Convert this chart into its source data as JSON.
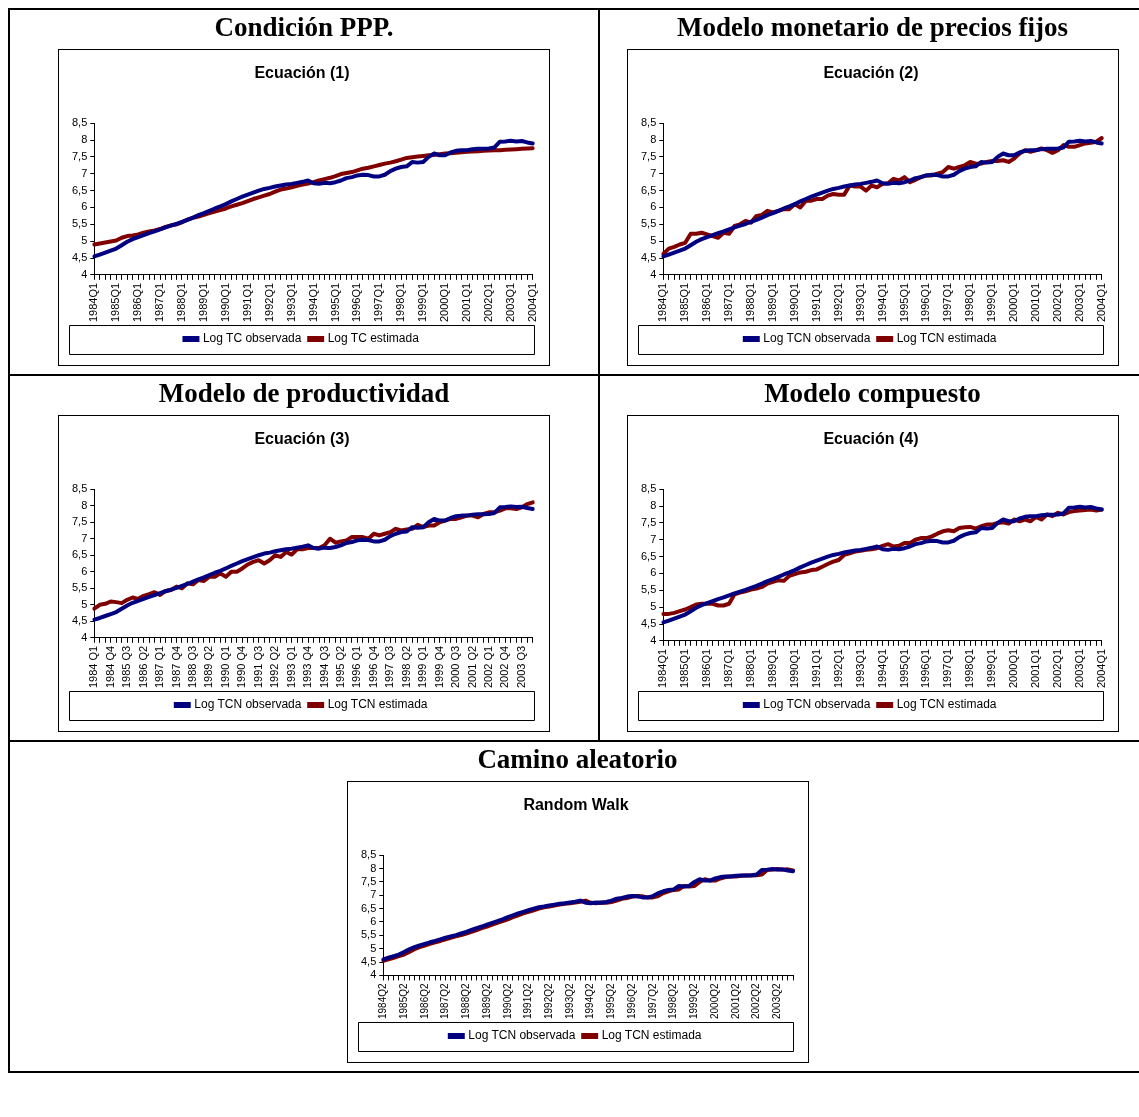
{
  "chart_data": [
    {
      "type": "line",
      "title": "Condición PPP.",
      "subtitle": "Ecuación (1)",
      "categories": [
        "1984Q1",
        null,
        null,
        null,
        "1985Q1",
        null,
        null,
        null,
        "1986Q1",
        null,
        null,
        null,
        "1987Q1",
        null,
        null,
        null,
        "1988Q1",
        null,
        null,
        null,
        "1989Q1",
        null,
        null,
        null,
        "1990Q1",
        null,
        null,
        null,
        "1991Q1",
        null,
        null,
        null,
        "1992Q1",
        null,
        null,
        null,
        "1993Q1",
        null,
        null,
        null,
        "1994Q1",
        null,
        null,
        null,
        "1995Q1",
        null,
        null,
        null,
        "1996Q1",
        null,
        null,
        null,
        "1997Q1",
        null,
        null,
        null,
        "1998Q1",
        null,
        null,
        null,
        "1999Q1",
        null,
        null,
        null,
        "2000Q1",
        null,
        null,
        null,
        "2001Q1",
        null,
        null,
        null,
        "2002Q1",
        null,
        null,
        null,
        "2003Q1",
        null,
        null,
        null,
        "2004Q1"
      ],
      "series": [
        {
          "name": "Log TC observada",
          "color": "#000080",
          "values": [
            4.55,
            4.6,
            4.66,
            4.72,
            4.78,
            4.88,
            4.98,
            5.06,
            5.12,
            5.18,
            5.24,
            5.29,
            5.35,
            5.41,
            5.46,
            5.51,
            5.57,
            5.63,
            5.7,
            5.77,
            5.83,
            5.9,
            5.97,
            6.03,
            6.1,
            6.18,
            6.25,
            6.32,
            6.38,
            6.44,
            6.5,
            6.55,
            6.58,
            6.62,
            6.65,
            6.68,
            6.7,
            6.73,
            6.76,
            6.8,
            6.72,
            6.7,
            6.73,
            6.72,
            6.75,
            6.8,
            6.87,
            6.9,
            6.95,
            6.97,
            6.96,
            6.92,
            6.92,
            6.97,
            7.08,
            7.15,
            7.2,
            7.22,
            7.35,
            7.33,
            7.35,
            7.5,
            7.6,
            7.55,
            7.55,
            7.63,
            7.68,
            7.7,
            7.7,
            7.73,
            7.74,
            7.74,
            7.75,
            7.78,
            7.95,
            7.96,
            7.98,
            7.96,
            7.97,
            7.93,
            7.9
          ]
        },
        {
          "name": "Log TC estimada",
          "color": "#800000",
          "values": [
            4.9,
            4.93,
            4.96,
            4.99,
            5.02,
            5.1,
            5.15,
            5.17,
            5.2,
            5.25,
            5.29,
            5.32,
            5.36,
            5.42,
            5.47,
            5.5,
            5.56,
            5.64,
            5.69,
            5.73,
            5.78,
            5.83,
            5.88,
            5.92,
            5.97,
            6.03,
            6.08,
            6.13,
            6.19,
            6.25,
            6.3,
            6.35,
            6.4,
            6.47,
            6.53,
            6.56,
            6.6,
            6.64,
            6.68,
            6.71,
            6.75,
            6.8,
            6.84,
            6.88,
            6.93,
            6.99,
            7.02,
            7.05,
            7.1,
            7.15,
            7.18,
            7.22,
            7.26,
            7.3,
            7.33,
            7.37,
            7.42,
            7.47,
            7.49,
            7.51,
            7.53,
            7.55,
            7.56,
            7.58,
            7.6,
            7.61,
            7.62,
            7.64,
            7.65,
            7.66,
            7.67,
            7.68,
            7.69,
            7.7,
            7.7,
            7.71,
            7.72,
            7.73,
            7.74,
            7.75,
            7.76
          ]
        }
      ],
      "ylim": [
        4,
        8.5
      ],
      "yticks": [
        4,
        {
          "value": 4.5,
          "label": "4,5"
        },
        5,
        {
          "value": 5.5,
          "label": "5,5"
        },
        6,
        {
          "value": 6.5,
          "label": "6,5"
        },
        7,
        {
          "value": 7.5,
          "label": "7,5"
        },
        8,
        {
          "value": 8.5,
          "label": "8,5"
        }
      ],
      "legend": "bottom"
    },
    {
      "type": "line",
      "title": "Modelo monetario de precios fijos",
      "subtitle": "Ecuación (2)",
      "categories": [
        "1984Q1",
        null,
        null,
        null,
        "1985Q1",
        null,
        null,
        null,
        "1986Q1",
        null,
        null,
        null,
        "1987Q1",
        null,
        null,
        null,
        "1988Q1",
        null,
        null,
        null,
        "1989Q1",
        null,
        null,
        null,
        "1990Q1",
        null,
        null,
        null,
        "1991Q1",
        null,
        null,
        null,
        "1992Q1",
        null,
        null,
        null,
        "1993Q1",
        null,
        null,
        null,
        "1994Q1",
        null,
        null,
        null,
        "1995Q1",
        null,
        null,
        null,
        "1996Q1",
        null,
        null,
        null,
        "1997Q1",
        null,
        null,
        null,
        "1998Q1",
        null,
        null,
        null,
        "1999Q1",
        null,
        null,
        null,
        "2000Q1",
        null,
        null,
        null,
        "2001Q1",
        null,
        null,
        null,
        "2002Q1",
        null,
        null,
        null,
        "2003Q1",
        null,
        null,
        null,
        "2004Q1"
      ],
      "series": [
        {
          "name": "Log TCN observada",
          "color": "#000080",
          "values": [
            4.55,
            4.6,
            4.66,
            4.72,
            4.78,
            4.88,
            4.98,
            5.06,
            5.12,
            5.18,
            5.24,
            5.29,
            5.35,
            5.41,
            5.46,
            5.51,
            5.57,
            5.63,
            5.7,
            5.77,
            5.83,
            5.9,
            5.97,
            6.03,
            6.1,
            6.18,
            6.25,
            6.32,
            6.38,
            6.44,
            6.5,
            6.55,
            6.58,
            6.62,
            6.65,
            6.68,
            6.7,
            6.73,
            6.76,
            6.8,
            6.72,
            6.7,
            6.73,
            6.72,
            6.75,
            6.8,
            6.87,
            6.9,
            6.95,
            6.97,
            6.96,
            6.92,
            6.92,
            6.97,
            7.08,
            7.15,
            7.2,
            7.22,
            7.35,
            7.33,
            7.35,
            7.5,
            7.6,
            7.55,
            7.55,
            7.63,
            7.68,
            7.7,
            7.7,
            7.73,
            7.74,
            7.74,
            7.75,
            7.78,
            7.95,
            7.96,
            7.98,
            7.96,
            7.97,
            7.93,
            7.9
          ]
        },
        {
          "name": "Log TCN estimada",
          "color": "#800000",
          "values": [
            4.62,
            4.78,
            4.83,
            4.9,
            4.95,
            5.22,
            5.22,
            5.25,
            5.2,
            5.15,
            5.1,
            5.25,
            5.22,
            5.45,
            5.5,
            5.6,
            5.55,
            5.75,
            5.78,
            5.9,
            5.85,
            5.9,
            5.95,
            5.95,
            6.1,
            6.0,
            6.2,
            6.2,
            6.25,
            6.25,
            6.35,
            6.4,
            6.38,
            6.38,
            6.65,
            6.62,
            6.62,
            6.5,
            6.65,
            6.6,
            6.7,
            6.72,
            6.85,
            6.8,
            6.9,
            6.75,
            6.82,
            6.9,
            6.95,
            6.95,
            7.0,
            7.05,
            7.2,
            7.15,
            7.2,
            7.25,
            7.35,
            7.3,
            7.3,
            7.35,
            7.38,
            7.38,
            7.4,
            7.35,
            7.45,
            7.6,
            7.7,
            7.65,
            7.7,
            7.75,
            7.7,
            7.62,
            7.7,
            7.85,
            7.8,
            7.8,
            7.85,
            7.9,
            7.92,
            7.95,
            8.06
          ]
        }
      ],
      "ylim": [
        4,
        8.5
      ],
      "yticks": [
        4,
        {
          "value": 4.5,
          "label": "4,5"
        },
        5,
        {
          "value": 5.5,
          "label": "5,5"
        },
        6,
        {
          "value": 6.5,
          "label": "6,5"
        },
        7,
        {
          "value": 7.5,
          "label": "7,5"
        },
        8,
        {
          "value": 8.5,
          "label": "8,5"
        }
      ],
      "legend": "bottom"
    },
    {
      "type": "line",
      "title": "Modelo de productividad",
      "subtitle": "Ecuación (3)",
      "categories": [
        "1984 Q1",
        null,
        null,
        "1984 Q4",
        null,
        null,
        "1985 Q3",
        null,
        null,
        "1986 Q2",
        null,
        null,
        "1987 Q1",
        null,
        null,
        "1987 Q4",
        null,
        null,
        "1988 Q3",
        null,
        null,
        "1989 Q2",
        null,
        null,
        "1990 Q1",
        null,
        null,
        "1990 Q4",
        null,
        null,
        "1991 Q3",
        null,
        null,
        "1992 Q2",
        null,
        null,
        "1993 Q1",
        null,
        null,
        "1993 Q4",
        null,
        null,
        "1994 Q3",
        null,
        null,
        "1995 Q2",
        null,
        null,
        "1996 Q1",
        null,
        null,
        "1996 Q4",
        null,
        null,
        "1997 Q3",
        null,
        null,
        "1998 Q2",
        null,
        null,
        "1999 Q1",
        null,
        null,
        "1999 Q4",
        null,
        null,
        "2000 Q3",
        null,
        null,
        "2001 Q2",
        null,
        null,
        "2002 Q1",
        null,
        null,
        "2002 Q4",
        null,
        null,
        "2003 Q3",
        null,
        null
      ],
      "series": [
        {
          "name": "Log TCN observada",
          "color": "#000080",
          "values": [
            4.55,
            4.6,
            4.66,
            4.72,
            4.78,
            4.88,
            4.98,
            5.06,
            5.12,
            5.18,
            5.24,
            5.29,
            5.35,
            5.41,
            5.46,
            5.51,
            5.57,
            5.63,
            5.7,
            5.77,
            5.83,
            5.9,
            5.97,
            6.03,
            6.1,
            6.18,
            6.25,
            6.32,
            6.38,
            6.44,
            6.5,
            6.55,
            6.58,
            6.62,
            6.65,
            6.68,
            6.7,
            6.73,
            6.76,
            6.8,
            6.72,
            6.7,
            6.73,
            6.72,
            6.75,
            6.8,
            6.87,
            6.9,
            6.95,
            6.97,
            6.96,
            6.92,
            6.92,
            6.97,
            7.08,
            7.15,
            7.2,
            7.22,
            7.35,
            7.33,
            7.35,
            7.5,
            7.6,
            7.55,
            7.55,
            7.63,
            7.68,
            7.7,
            7.7,
            7.73,
            7.74,
            7.74,
            7.75,
            7.78,
            7.95,
            7.96,
            7.98,
            7.96,
            7.97,
            7.93,
            7.9
          ]
        },
        {
          "name": "Log TCN estimada",
          "color": "#800000",
          "values": [
            4.88,
            5.0,
            5.03,
            5.1,
            5.08,
            5.05,
            5.15,
            5.22,
            5.18,
            5.27,
            5.32,
            5.38,
            5.3,
            5.42,
            5.45,
            5.55,
            5.5,
            5.65,
            5.62,
            5.75,
            5.72,
            5.85,
            5.85,
            5.95,
            5.85,
            6.0,
            6.0,
            6.1,
            6.22,
            6.3,
            6.35,
            6.25,
            6.35,
            6.5,
            6.45,
            6.6,
            6.52,
            6.68,
            6.68,
            6.72,
            6.72,
            6.72,
            6.8,
            7.0,
            6.88,
            6.92,
            6.95,
            7.05,
            7.05,
            7.05,
            7.0,
            7.15,
            7.1,
            7.15,
            7.2,
            7.3,
            7.25,
            7.28,
            7.3,
            7.42,
            7.35,
            7.4,
            7.4,
            7.5,
            7.55,
            7.6,
            7.6,
            7.65,
            7.7,
            7.7,
            7.65,
            7.75,
            7.8,
            7.8,
            7.85,
            7.92,
            7.92,
            7.9,
            7.95,
            8.05,
            8.1
          ]
        }
      ],
      "ylim": [
        4,
        8.5
      ],
      "yticks": [
        4,
        {
          "value": 4.5,
          "label": "4,5"
        },
        5,
        {
          "value": 5.5,
          "label": "5,5"
        },
        6,
        {
          "value": 6.5,
          "label": "6,5"
        },
        7,
        {
          "value": 7.5,
          "label": "7,5"
        },
        8,
        {
          "value": 8.5,
          "label": "8,5"
        }
      ],
      "legend": "bottom"
    },
    {
      "type": "line",
      "title": "Modelo compuesto",
      "subtitle": "Ecuación (4)",
      "categories": [
        "1984Q1",
        null,
        null,
        null,
        "1985Q1",
        null,
        null,
        null,
        "1986Q1",
        null,
        null,
        null,
        "1987Q1",
        null,
        null,
        null,
        "1988Q1",
        null,
        null,
        null,
        "1989Q1",
        null,
        null,
        null,
        "1990Q1",
        null,
        null,
        null,
        "1991Q1",
        null,
        null,
        null,
        "1992Q1",
        null,
        null,
        null,
        "1993Q1",
        null,
        null,
        null,
        "1994Q1",
        null,
        null,
        null,
        "1995Q1",
        null,
        null,
        null,
        "1996Q1",
        null,
        null,
        null,
        "1997Q1",
        null,
        null,
        null,
        "1998Q1",
        null,
        null,
        null,
        "1999Q1",
        null,
        null,
        null,
        "2000Q1",
        null,
        null,
        null,
        "2001Q1",
        null,
        null,
        null,
        "2002Q1",
        null,
        null,
        null,
        "2003Q1",
        null,
        null,
        null,
        "2004Q1"
      ],
      "series": [
        {
          "name": "Log TCN observada",
          "color": "#000080",
          "values": [
            4.55,
            4.6,
            4.66,
            4.72,
            4.78,
            4.88,
            4.98,
            5.06,
            5.12,
            5.18,
            5.24,
            5.29,
            5.35,
            5.41,
            5.46,
            5.51,
            5.57,
            5.63,
            5.7,
            5.77,
            5.83,
            5.9,
            5.97,
            6.03,
            6.1,
            6.18,
            6.25,
            6.32,
            6.38,
            6.44,
            6.5,
            6.55,
            6.58,
            6.62,
            6.65,
            6.68,
            6.7,
            6.73,
            6.76,
            6.8,
            6.72,
            6.7,
            6.73,
            6.72,
            6.75,
            6.8,
            6.87,
            6.9,
            6.95,
            6.97,
            6.96,
            6.92,
            6.92,
            6.97,
            7.08,
            7.15,
            7.2,
            7.22,
            7.35,
            7.33,
            7.35,
            7.5,
            7.6,
            7.55,
            7.55,
            7.63,
            7.68,
            7.7,
            7.7,
            7.73,
            7.74,
            7.74,
            7.75,
            7.78,
            7.95,
            7.96,
            7.98,
            7.96,
            7.97,
            7.93,
            7.9
          ]
        },
        {
          "name": "Log TCN estimada",
          "color": "#800000",
          "values": [
            4.8,
            4.8,
            4.83,
            4.88,
            4.93,
            5.0,
            5.08,
            5.1,
            5.1,
            5.1,
            5.05,
            5.05,
            5.1,
            5.38,
            5.43,
            5.47,
            5.52,
            5.55,
            5.6,
            5.7,
            5.75,
            5.8,
            5.78,
            5.93,
            5.98,
            6.03,
            6.05,
            6.1,
            6.12,
            6.2,
            6.28,
            6.35,
            6.4,
            6.55,
            6.6,
            6.65,
            6.67,
            6.7,
            6.72,
            6.75,
            6.82,
            6.87,
            6.8,
            6.82,
            6.9,
            6.9,
            7.0,
            7.05,
            7.05,
            7.1,
            7.18,
            7.25,
            7.28,
            7.25,
            7.35,
            7.37,
            7.38,
            7.33,
            7.4,
            7.45,
            7.45,
            7.5,
            7.52,
            7.48,
            7.6,
            7.55,
            7.6,
            7.55,
            7.68,
            7.6,
            7.75,
            7.7,
            7.8,
            7.75,
            7.82,
            7.85,
            7.87,
            7.88,
            7.9,
            7.87,
            7.9
          ]
        }
      ],
      "ylim": [
        4,
        8.5
      ],
      "yticks": [
        4,
        {
          "value": 4.5,
          "label": "4,5"
        },
        5,
        {
          "value": 5.5,
          "label": "5,5"
        },
        6,
        {
          "value": 6.5,
          "label": "6,5"
        },
        7,
        {
          "value": 7.5,
          "label": "7,5"
        },
        8,
        {
          "value": 8.5,
          "label": "8,5"
        }
      ],
      "legend": "bottom"
    },
    {
      "type": "line",
      "title": "Camino aleatorio",
      "subtitle": "Random Walk",
      "categories": [
        "1984Q2",
        null,
        null,
        null,
        "1985Q2",
        null,
        null,
        null,
        "1986Q2",
        null,
        null,
        null,
        "1987Q2",
        null,
        null,
        null,
        "1988Q2",
        null,
        null,
        null,
        "1989Q2",
        null,
        null,
        null,
        "1990Q2",
        null,
        null,
        null,
        "1991Q2",
        null,
        null,
        null,
        "1992Q2",
        null,
        null,
        null,
        "1993Q2",
        null,
        null,
        null,
        "1994Q2",
        null,
        null,
        null,
        "1995Q2",
        null,
        null,
        null,
        "1996Q2",
        null,
        null,
        null,
        "1997Q2",
        null,
        null,
        null,
        "1998Q2",
        null,
        null,
        null,
        "1999Q2",
        null,
        null,
        null,
        "2000Q2",
        null,
        null,
        null,
        "2001Q2",
        null,
        null,
        null,
        "2002Q2",
        null,
        null,
        null,
        "2003Q2",
        null,
        null,
        null
      ],
      "series": [
        {
          "name": "Log TCN observada",
          "color": "#000080",
          "values": [
            4.6,
            4.66,
            4.72,
            4.78,
            4.88,
            4.98,
            5.06,
            5.12,
            5.18,
            5.24,
            5.29,
            5.35,
            5.41,
            5.46,
            5.51,
            5.57,
            5.63,
            5.7,
            5.77,
            5.83,
            5.9,
            5.97,
            6.03,
            6.1,
            6.18,
            6.25,
            6.32,
            6.38,
            6.44,
            6.5,
            6.55,
            6.58,
            6.62,
            6.65,
            6.68,
            6.7,
            6.73,
            6.76,
            6.8,
            6.72,
            6.7,
            6.73,
            6.72,
            6.75,
            6.8,
            6.87,
            6.9,
            6.95,
            6.97,
            6.96,
            6.92,
            6.92,
            6.97,
            7.08,
            7.15,
            7.2,
            7.22,
            7.35,
            7.33,
            7.35,
            7.5,
            7.6,
            7.55,
            7.55,
            7.63,
            7.68,
            7.7,
            7.7,
            7.73,
            7.74,
            7.74,
            7.75,
            7.78,
            7.95,
            7.96,
            7.98,
            7.96,
            7.97,
            7.93,
            7.9
          ]
        },
        {
          "name": "Log TCN estimada",
          "color": "#800000",
          "values": [
            4.55,
            4.6,
            4.66,
            4.72,
            4.78,
            4.88,
            4.98,
            5.06,
            5.12,
            5.18,
            5.24,
            5.29,
            5.35,
            5.41,
            5.46,
            5.51,
            5.57,
            5.63,
            5.7,
            5.77,
            5.83,
            5.9,
            5.97,
            6.03,
            6.1,
            6.18,
            6.25,
            6.32,
            6.38,
            6.44,
            6.5,
            6.55,
            6.58,
            6.62,
            6.65,
            6.68,
            6.7,
            6.73,
            6.76,
            6.8,
            6.72,
            6.7,
            6.73,
            6.72,
            6.75,
            6.8,
            6.87,
            6.9,
            6.95,
            6.97,
            6.96,
            6.92,
            6.92,
            6.97,
            7.08,
            7.15,
            7.2,
            7.22,
            7.35,
            7.33,
            7.35,
            7.5,
            7.6,
            7.55,
            7.55,
            7.63,
            7.68,
            7.7,
            7.7,
            7.73,
            7.74,
            7.74,
            7.75,
            7.78,
            7.95,
            7.96,
            7.98,
            7.96,
            7.97,
            7.93
          ]
        }
      ],
      "ylim": [
        4,
        8.5
      ],
      "yticks": [
        4,
        {
          "value": 4.5,
          "label": "4,5"
        },
        5,
        {
          "value": 5.5,
          "label": "5,5"
        },
        6,
        {
          "value": 6.5,
          "label": "6,5"
        },
        7,
        {
          "value": 7.5,
          "label": "7,5"
        },
        8,
        {
          "value": 8.5,
          "label": "8,5"
        }
      ],
      "legend": "bottom"
    }
  ]
}
